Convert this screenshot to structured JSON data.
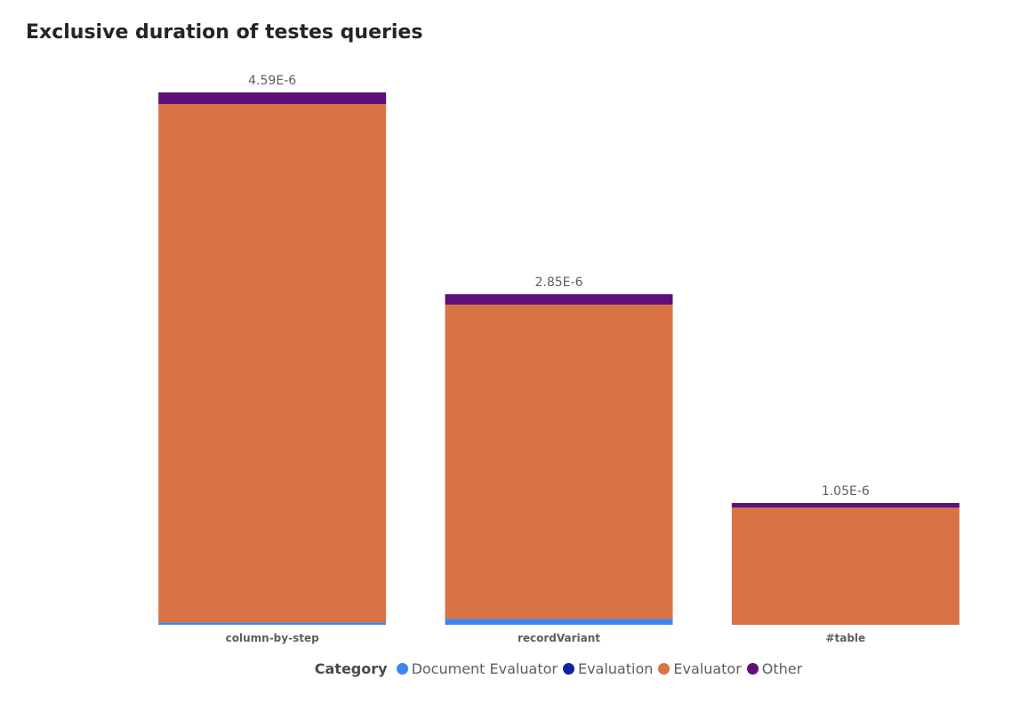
{
  "chart_data": {
    "type": "bar",
    "stacked": true,
    "title": "Exclusive duration of testes queries",
    "xlabel": "",
    "ylabel": "",
    "categories": [
      "column-by-step",
      "recordVariant",
      "#table"
    ],
    "series": [
      {
        "name": "Document Evaluator",
        "color": "#3a86f0",
        "values": [
          2e-08,
          5e-08,
          0
        ]
      },
      {
        "name": "Evaluation",
        "color": "#12239e",
        "values": [
          0,
          0,
          0
        ]
      },
      {
        "name": "Evaluator",
        "color": "#d97245",
        "values": [
          4.47e-06,
          2.71e-06,
          1.01e-06
        ]
      },
      {
        "name": "Other",
        "color": "#5f1078",
        "values": [
          1e-07,
          9e-08,
          4e-08
        ]
      }
    ],
    "totals": [
      "4.59E-6",
      "2.85E-6",
      "1.05E-6"
    ],
    "ylim": [
      0,
      4.59e-06
    ],
    "y_axis_visible": false,
    "grid": false,
    "legend": {
      "title": "Category",
      "position": "bottom"
    }
  }
}
